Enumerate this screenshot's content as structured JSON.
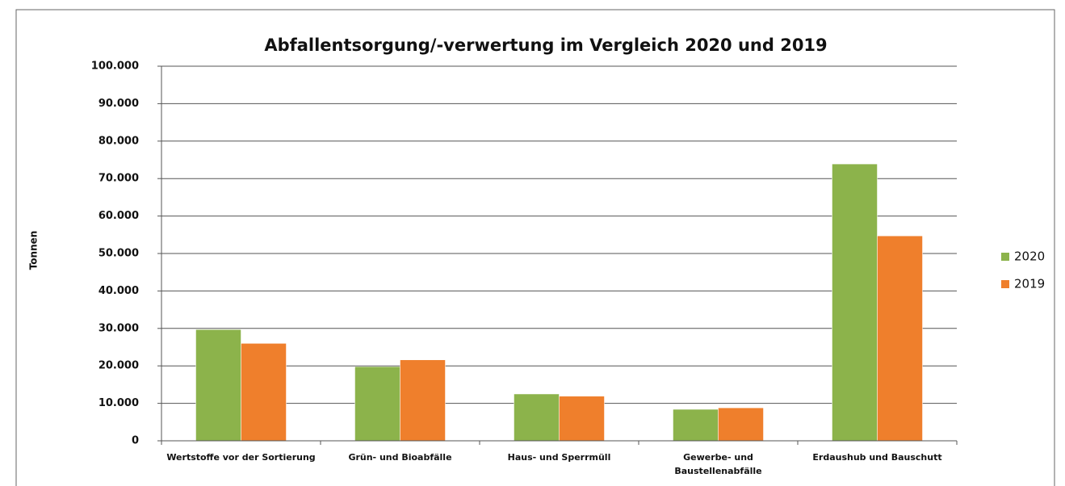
{
  "chart_data": {
    "type": "bar",
    "title": "Abfallentsorgung/-verwertung im Vergleich 2020 und 2019",
    "y_label": "Tonnen",
    "categories": [
      "Wertstoffe vor der Sortierung",
      "Grün- und Bioabfälle",
      "Haus- und Sperrmüll",
      "Gewerbe- und Baustellenabfälle",
      "Erdaushub und Bauschutt"
    ],
    "series": [
      {
        "name": "2020",
        "color": "#8cb34b",
        "values": [
          29700,
          19800,
          12500,
          8400,
          73900
        ]
      },
      {
        "name": "2019",
        "color": "#ef7f2c",
        "values": [
          26000,
          21600,
          11900,
          8800,
          54700
        ]
      }
    ],
    "ylim": [
      0,
      100000
    ],
    "yticks": [
      0,
      {
        "value": 10000,
        "label": "10.000"
      },
      {
        "value": 20000,
        "label": "20.000"
      },
      {
        "value": 30000,
        "label": "30.000"
      },
      {
        "value": 40000,
        "label": "40.000"
      },
      {
        "value": 50000,
        "label": "50.000"
      },
      {
        "value": 60000,
        "label": "60.000"
      },
      {
        "value": 70000,
        "label": "70.000"
      },
      {
        "value": 80000,
        "label": "80.000"
      },
      {
        "value": 90000,
        "label": "90.000"
      },
      {
        "value": 100000,
        "label": "100.000"
      }
    ],
    "grid": true,
    "legend": "right"
  }
}
